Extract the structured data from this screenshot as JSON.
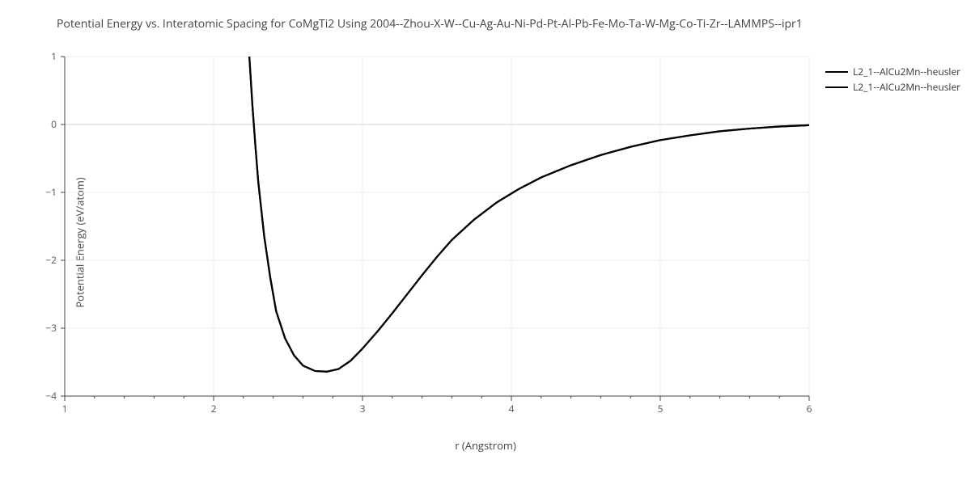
{
  "chart": {
    "type": "line",
    "title": "Potential Energy vs. Interatomic Spacing for CoMgTi2 Using 2004--Zhou-X-W--Cu-Ag-Au-Ni-Pd-Pt-Al-Pb-Fe-Mo-Ta-W-Mg-Co-Ti-Zr--LAMMPS--ipr1",
    "title_fontsize": 14,
    "title_color": "#444444",
    "xlabel": "r (Angstrom)",
    "ylabel": "Potential Energy (eV/atom)",
    "label_fontsize": 13,
    "label_color": "#444444",
    "background_color": "#ffffff",
    "grid_color": "#eeeeee",
    "axis_line_color": "#444444",
    "tick_color": "#555555",
    "tick_fontsize": 12,
    "xlim": [
      1,
      6
    ],
    "ylim": [
      -4,
      1
    ],
    "xticks": [
      1,
      2,
      3,
      4,
      5,
      6
    ],
    "yticks": [
      -4,
      -3,
      -2,
      -1,
      0,
      1
    ],
    "x_minor_step": 0.2,
    "zero_line_color": "#cccccc",
    "line_width": 2.2,
    "series": [
      {
        "name": "L2_1--AlCu2Mn--heusler",
        "color": "#000000",
        "data": [
          [
            2.24,
            1.0
          ],
          [
            2.26,
            0.3
          ],
          [
            2.28,
            -0.3
          ],
          [
            2.3,
            -0.85
          ],
          [
            2.34,
            -1.65
          ],
          [
            2.38,
            -2.25
          ],
          [
            2.42,
            -2.75
          ],
          [
            2.48,
            -3.15
          ],
          [
            2.54,
            -3.4
          ],
          [
            2.6,
            -3.55
          ],
          [
            2.68,
            -3.63
          ],
          [
            2.76,
            -3.64
          ],
          [
            2.84,
            -3.6
          ],
          [
            2.92,
            -3.48
          ],
          [
            3.0,
            -3.3
          ],
          [
            3.1,
            -3.05
          ],
          [
            3.2,
            -2.78
          ],
          [
            3.3,
            -2.5
          ],
          [
            3.4,
            -2.22
          ],
          [
            3.5,
            -1.95
          ],
          [
            3.6,
            -1.7
          ],
          [
            3.75,
            -1.4
          ],
          [
            3.9,
            -1.15
          ],
          [
            4.05,
            -0.95
          ],
          [
            4.2,
            -0.78
          ],
          [
            4.4,
            -0.6
          ],
          [
            4.6,
            -0.45
          ],
          [
            4.8,
            -0.33
          ],
          [
            5.0,
            -0.23
          ],
          [
            5.2,
            -0.16
          ],
          [
            5.4,
            -0.1
          ],
          [
            5.6,
            -0.06
          ],
          [
            5.8,
            -0.03
          ],
          [
            6.0,
            -0.01
          ]
        ]
      },
      {
        "name": "L2_1--AlCu2Mn--heusler",
        "color": "#000000",
        "data": [
          [
            2.24,
            1.0
          ],
          [
            2.26,
            0.3
          ],
          [
            2.28,
            -0.3
          ],
          [
            2.3,
            -0.85
          ],
          [
            2.34,
            -1.65
          ],
          [
            2.38,
            -2.25
          ],
          [
            2.42,
            -2.75
          ],
          [
            2.48,
            -3.15
          ],
          [
            2.54,
            -3.4
          ],
          [
            2.6,
            -3.55
          ],
          [
            2.68,
            -3.63
          ],
          [
            2.76,
            -3.64
          ],
          [
            2.84,
            -3.6
          ],
          [
            2.92,
            -3.48
          ],
          [
            3.0,
            -3.3
          ],
          [
            3.1,
            -3.05
          ],
          [
            3.2,
            -2.78
          ],
          [
            3.3,
            -2.5
          ],
          [
            3.4,
            -2.22
          ],
          [
            3.5,
            -1.95
          ],
          [
            3.6,
            -1.7
          ],
          [
            3.75,
            -1.4
          ],
          [
            3.9,
            -1.15
          ],
          [
            4.05,
            -0.95
          ],
          [
            4.2,
            -0.78
          ],
          [
            4.4,
            -0.6
          ],
          [
            4.6,
            -0.45
          ],
          [
            4.8,
            -0.33
          ],
          [
            5.0,
            -0.23
          ],
          [
            5.2,
            -0.16
          ],
          [
            5.4,
            -0.1
          ],
          [
            5.6,
            -0.06
          ],
          [
            5.8,
            -0.03
          ],
          [
            6.0,
            -0.01
          ]
        ]
      }
    ],
    "legend": {
      "position": "right",
      "fontsize": 12,
      "color": "#333333"
    }
  }
}
